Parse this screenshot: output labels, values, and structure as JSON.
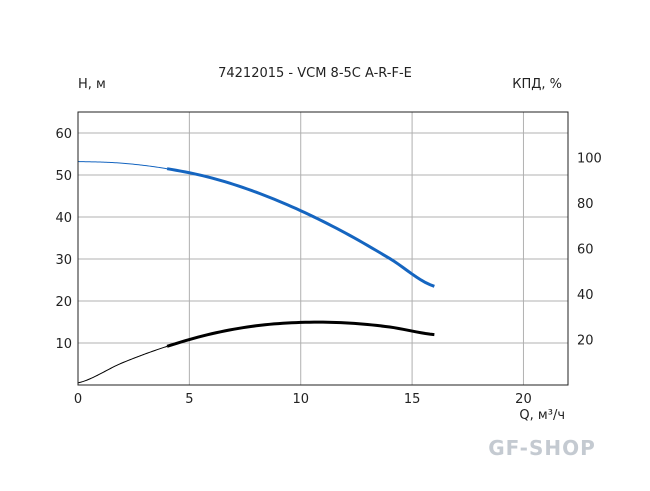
{
  "chart_data": {
    "type": "line",
    "title": "74212015 - VCM 8-5C A-R-F-E",
    "xlabel": "Q, м³/ч",
    "ylabel_left": "Н, м",
    "ylabel_right": "КПД, %",
    "xlim": [
      0,
      22
    ],
    "ylim_left": [
      0,
      65
    ],
    "ylim_right": [
      0,
      120
    ],
    "x_ticks": [
      0,
      5,
      10,
      15,
      20
    ],
    "y_ticks_left": [
      10,
      20,
      30,
      40,
      50,
      60
    ],
    "y_ticks_right": [
      20,
      40,
      60,
      80,
      100
    ],
    "grid": true,
    "series": [
      {
        "axis": "left",
        "color": "#1565c0",
        "operating_range": [
          4,
          16
        ],
        "x": [
          0,
          2,
          4,
          6,
          8,
          10,
          12,
          14,
          16
        ],
        "y": [
          53.2,
          52.8,
          51.5,
          49.3,
          45.9,
          41.5,
          36.2,
          30.1,
          23.5
        ]
      },
      {
        "axis": "left",
        "color": "#000000",
        "operating_range": [
          4,
          16
        ],
        "x": [
          0,
          2,
          4,
          6,
          8,
          10,
          12,
          14,
          16
        ],
        "y": [
          0.5,
          5.3,
          9.2,
          12.2,
          14.1,
          14.9,
          14.8,
          13.8,
          12.0
        ]
      }
    ]
  },
  "watermark": "GF-SHOP"
}
